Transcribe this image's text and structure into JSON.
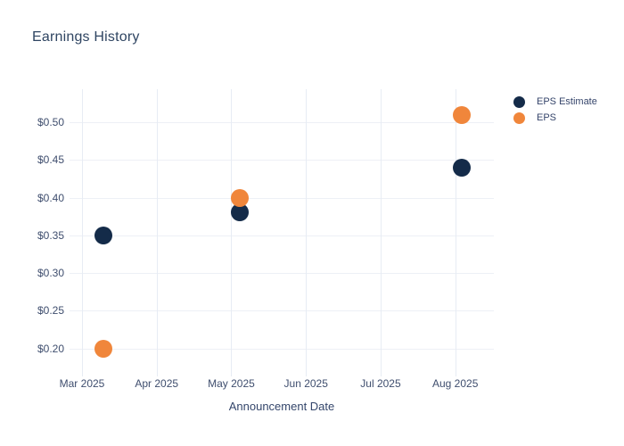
{
  "chart_data": {
    "type": "scatter",
    "title": "Earnings History",
    "xlabel": "Announcement Date",
    "ylabel": "",
    "x_ticks": [
      "Mar 2025",
      "Apr 2025",
      "May 2025",
      "Jun 2025",
      "Jul 2025",
      "Aug 2025"
    ],
    "y_ticks": [
      {
        "label": "$0.20",
        "value": 0.2
      },
      {
        "label": "$0.25",
        "value": 0.25
      },
      {
        "label": "$0.30",
        "value": 0.3
      },
      {
        "label": "$0.35",
        "value": 0.35
      },
      {
        "label": "$0.40",
        "value": 0.4
      },
      {
        "label": "$0.45",
        "value": 0.45
      },
      {
        "label": "$0.50",
        "value": 0.5
      }
    ],
    "ylim": [
      0.168,
      0.545
    ],
    "grid": true,
    "legend_position": "right-top",
    "series": [
      {
        "name": "EPS Estimate",
        "color": "#142b49",
        "points": [
          {
            "x_month": 0.29,
            "value": 0.35
          },
          {
            "x_month": 2.11,
            "value": 0.38
          },
          {
            "x_month": 5.09,
            "value": 0.44
          }
        ]
      },
      {
        "name": "EPS",
        "color": "#f0863b",
        "points": [
          {
            "x_month": 0.29,
            "value": 0.2
          },
          {
            "x_month": 2.11,
            "value": 0.4
          },
          {
            "x_month": 5.09,
            "value": 0.51
          }
        ]
      }
    ]
  }
}
